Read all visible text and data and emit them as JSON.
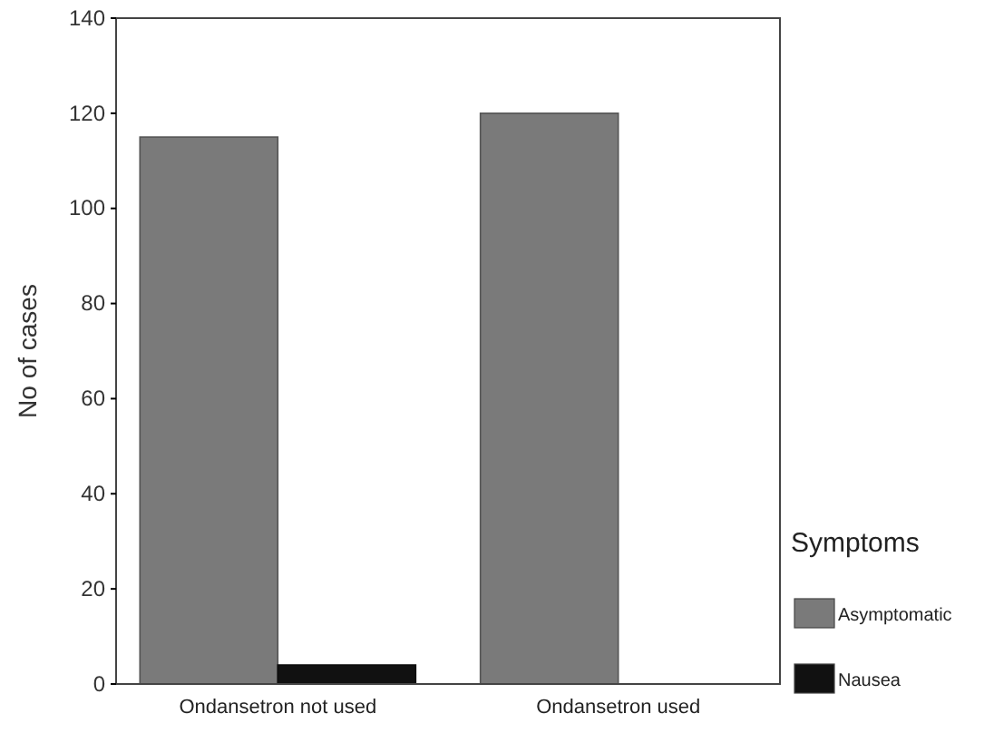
{
  "chart_data": {
    "type": "bar",
    "ylabel": "No of cases",
    "legend_title": "Symptoms",
    "categories": [
      "Ondansetron not used",
      "Ondansetron used"
    ],
    "series": [
      {
        "name": "Asymptomatic",
        "color": "#7a7a7a",
        "values": [
          115,
          120
        ]
      },
      {
        "name": "Nausea",
        "color": "#111111",
        "values": [
          4,
          0
        ]
      }
    ],
    "ylim": [
      0,
      140
    ],
    "yticks": [
      0,
      20,
      40,
      60,
      80,
      100,
      120,
      140
    ],
    "grid": false,
    "legend": "right"
  }
}
